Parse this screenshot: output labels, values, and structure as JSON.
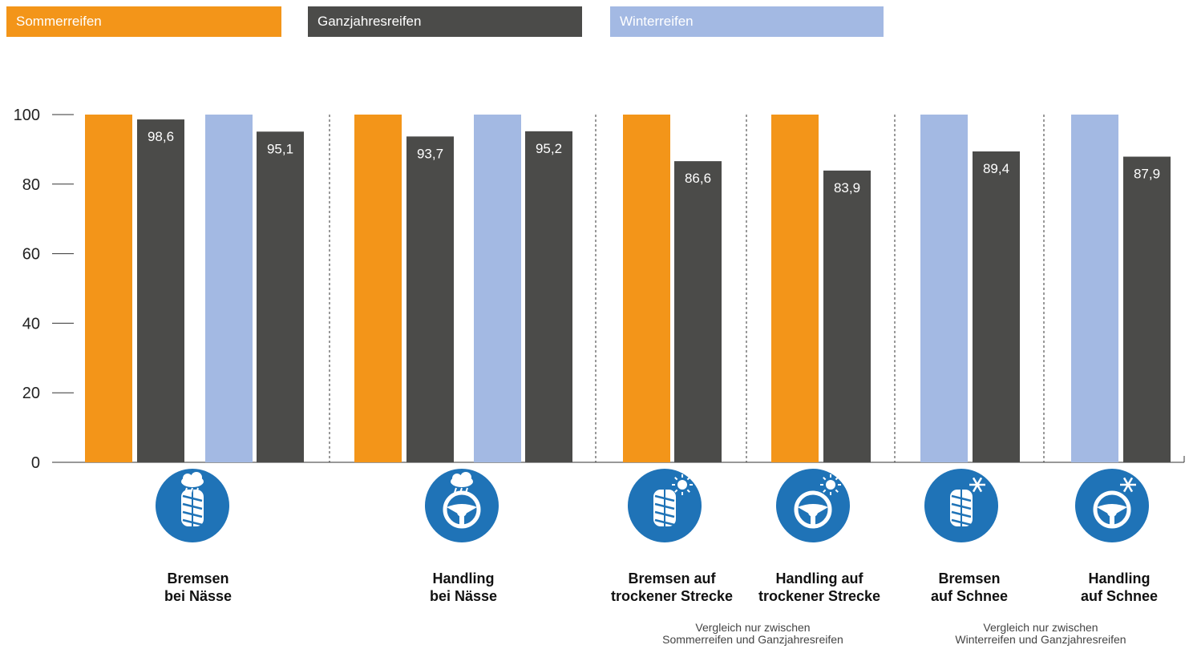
{
  "legend": [
    {
      "label": "Sommerreifen",
      "color": "#F39519",
      "text_color": "#ffffff"
    },
    {
      "label": "Ganzjahresreifen",
      "color": "#4B4B49",
      "text_color": "#ffffff"
    },
    {
      "label": "Winterreifen",
      "color": "#A3B9E3",
      "text_color": "#ffffff"
    }
  ],
  "chart_data": {
    "type": "bar",
    "ylim": [
      0,
      100
    ],
    "yticks": [
      0,
      20,
      40,
      60,
      80,
      100
    ],
    "colors": {
      "Sommerreifen": "#F39519",
      "Ganzjahresreifen": "#4B4B49",
      "Winterreifen": "#A3B9E3"
    },
    "bars": [
      {
        "series": "Sommerreifen",
        "value": 100,
        "label": ""
      },
      {
        "series": "Ganzjahresreifen",
        "value": 98.6,
        "label": "98,6"
      },
      {
        "series": "Winterreifen",
        "value": 100,
        "label": ""
      },
      {
        "series": "Ganzjahresreifen",
        "value": 95.1,
        "label": "95,1"
      },
      {
        "series": "Sommerreifen",
        "value": 100,
        "label": ""
      },
      {
        "series": "Ganzjahresreifen",
        "value": 93.7,
        "label": "93,7"
      },
      {
        "series": "Winterreifen",
        "value": 100,
        "label": ""
      },
      {
        "series": "Ganzjahresreifen",
        "value": 95.2,
        "label": "95,2"
      },
      {
        "series": "Sommerreifen",
        "value": 100,
        "label": ""
      },
      {
        "series": "Ganzjahresreifen",
        "value": 86.6,
        "label": "86,6"
      },
      {
        "series": "Sommerreifen",
        "value": 100,
        "label": ""
      },
      {
        "series": "Ganzjahresreifen",
        "value": 83.9,
        "label": "83,9"
      },
      {
        "series": "Winterreifen",
        "value": 100,
        "label": ""
      },
      {
        "series": "Ganzjahresreifen",
        "value": 89.4,
        "label": "89,4"
      },
      {
        "series": "Winterreifen",
        "value": 100,
        "label": ""
      },
      {
        "series": "Ganzjahresreifen",
        "value": 87.9,
        "label": "87,9"
      }
    ],
    "categories": [
      {
        "line1": "Bremsen",
        "line2": "bei Nässe",
        "icon": "tire-rain-icon"
      },
      {
        "line1": "Handling",
        "line2": "bei Nässe",
        "icon": "steering-wheel-rain-icon"
      },
      {
        "line1": "Bremsen auf",
        "line2": "trockener Strecke",
        "icon": "tire-sun-icon"
      },
      {
        "line1": "Handling auf",
        "line2": "trockener Strecke",
        "icon": "steering-wheel-sun-icon"
      },
      {
        "line1": "Bremsen",
        "line2": "auf Schnee",
        "icon": "tire-snow-icon"
      },
      {
        "line1": "Handling",
        "line2": "auf Schnee",
        "icon": "steering-wheel-snow-icon"
      }
    ],
    "notes": [
      {
        "line1": "Vergleich nur zwischen",
        "line2": "Sommerreifen und Ganzjahresreifen"
      },
      {
        "line1": "Vergleich nur zwischen",
        "line2": "Winterreifen und Ganzjahresreifen"
      }
    ],
    "icon_color": "#1F73B7"
  }
}
